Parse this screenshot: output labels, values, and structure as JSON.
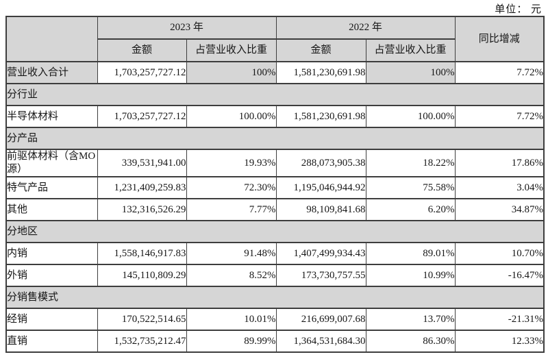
{
  "unit_label": "单位： 元",
  "colors": {
    "shaded_bg": "#d6d6d6",
    "border": "#3d3d3d",
    "text": "#161616"
  },
  "table": {
    "header": {
      "year_2023": "2023 年",
      "year_2022": "2022 年",
      "amount": "金额",
      "ratio": "占营业收入比重",
      "yoy": "同比增减"
    },
    "rows": [
      {
        "type": "data",
        "name": "total-revenue",
        "label": "营业收入合计",
        "shaded": true,
        "cells": [
          "1,703,257,727.12",
          "100%",
          "1,581,230,691.98",
          "100%",
          "7.72%"
        ]
      },
      {
        "type": "section",
        "name": "by-industry",
        "label": "分行业"
      },
      {
        "type": "data",
        "name": "semiconductor-materials",
        "label": "半导体材料",
        "cells": [
          "1,703,257,727.12",
          "100.00%",
          "1,581,230,691.98",
          "100.00%",
          "7.72%"
        ]
      },
      {
        "type": "section",
        "name": "by-product",
        "label": "分产品"
      },
      {
        "type": "data",
        "name": "precursor-materials",
        "label": "前驱体材料（含MO 源）",
        "tall": true,
        "cells": [
          "339,531,941.00",
          "19.93%",
          "288,073,905.38",
          "18.22%",
          "17.86%"
        ]
      },
      {
        "type": "data",
        "name": "special-gas-products",
        "label": "特气产品",
        "cells": [
          "1,231,409,259.83",
          "72.30%",
          "1,195,046,944.92",
          "75.58%",
          "3.04%"
        ]
      },
      {
        "type": "data",
        "name": "others",
        "label": "其他",
        "cells": [
          "132,316,526.29",
          "7.77%",
          "98,109,841.68",
          "6.20%",
          "34.87%"
        ]
      },
      {
        "type": "section",
        "name": "by-region",
        "label": "分地区"
      },
      {
        "type": "data",
        "name": "domestic-sales",
        "label": "内销",
        "cells": [
          "1,558,146,917.83",
          "91.48%",
          "1,407,499,934.43",
          "89.01%",
          "10.70%"
        ]
      },
      {
        "type": "data",
        "name": "export-sales",
        "label": "外销",
        "cells": [
          "145,110,809.29",
          "8.52%",
          "173,730,757.55",
          "10.99%",
          "-16.47%"
        ]
      },
      {
        "type": "section",
        "name": "by-sales-model",
        "label": "分销售模式"
      },
      {
        "type": "data",
        "name": "distribution-sales",
        "label": "经销",
        "cells": [
          "170,522,514.65",
          "10.01%",
          "216,699,007.68",
          "13.70%",
          "-21.31%"
        ]
      },
      {
        "type": "data",
        "name": "direct-sales",
        "label": "直销",
        "cells": [
          "1,532,735,212.47",
          "89.99%",
          "1,364,531,684.30",
          "86.30%",
          "12.33%"
        ]
      }
    ]
  }
}
